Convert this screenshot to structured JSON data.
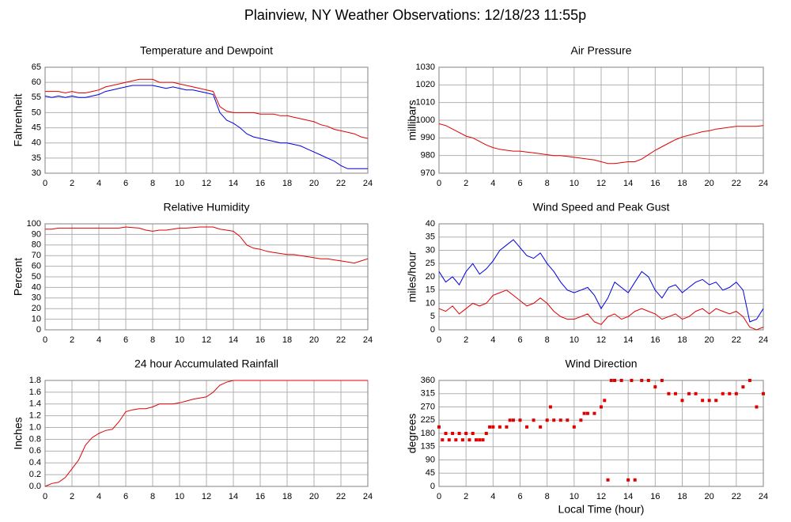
{
  "title": "Plainview, NY Weather Observations: 12/18/23 11:55p",
  "chart_data": [
    {
      "type": "line",
      "title": "Temperature and Dewpoint",
      "ylabel": "Fahrenheit",
      "x": [
        0,
        0.5,
        1,
        1.5,
        2,
        2.5,
        3,
        3.5,
        4,
        4.5,
        5,
        5.5,
        6,
        6.5,
        7,
        7.5,
        8,
        8.5,
        9,
        9.5,
        10,
        10.5,
        11,
        11.5,
        12,
        12.5,
        13,
        13.5,
        14,
        14.5,
        15,
        15.5,
        16,
        16.5,
        17,
        17.5,
        18,
        18.5,
        19,
        19.5,
        20,
        20.5,
        21,
        21.5,
        22,
        22.5,
        23,
        23.5,
        24
      ],
      "series": [
        {
          "color": "#e00000",
          "values": [
            57,
            57,
            57,
            56.5,
            57,
            56.5,
            56.5,
            57,
            57.5,
            58.5,
            59,
            59.5,
            60,
            60.5,
            61,
            61,
            61,
            60,
            60,
            60,
            59.5,
            59,
            58.5,
            58,
            57.5,
            57,
            52,
            50.5,
            50,
            50,
            50,
            50,
            49.5,
            49.5,
            49.5,
            49,
            49,
            48.5,
            48,
            47.5,
            47,
            46,
            45.5,
            44.5,
            44,
            43.5,
            43,
            42,
            41.5
          ]
        },
        {
          "color": "#0000e0",
          "values": [
            55.5,
            55,
            55.5,
            55,
            55.5,
            55,
            55,
            55.5,
            56,
            57,
            57.5,
            58,
            58.5,
            59,
            59,
            59,
            59,
            58.5,
            58,
            58.5,
            58,
            57.5,
            57.5,
            57,
            56.5,
            56,
            50,
            47.5,
            46.5,
            45,
            43,
            42,
            41.5,
            41,
            40.5,
            40,
            40,
            39.5,
            39,
            38,
            37,
            36,
            35,
            34,
            32.5,
            31.5,
            31.5,
            31.5,
            31.5
          ]
        }
      ],
      "xlim": [
        0,
        24
      ],
      "xticks": [
        0,
        2,
        4,
        6,
        8,
        10,
        12,
        14,
        16,
        18,
        20,
        22,
        24
      ],
      "ylim": [
        30,
        65
      ],
      "yticks": [
        30,
        35,
        40,
        45,
        50,
        55,
        60,
        65
      ],
      "grid": true
    },
    {
      "type": "line",
      "title": "Air Pressure",
      "ylabel": "millibars",
      "x": [
        0,
        0.5,
        1,
        1.5,
        2,
        2.5,
        3,
        3.5,
        4,
        4.5,
        5,
        5.5,
        6,
        6.5,
        7,
        7.5,
        8,
        8.5,
        9,
        9.5,
        10,
        10.5,
        11,
        11.5,
        12,
        12.5,
        13,
        13.5,
        14,
        14.5,
        15,
        15.5,
        16,
        16.5,
        17,
        17.5,
        18,
        18.5,
        19,
        19.5,
        20,
        20.5,
        21,
        21.5,
        22,
        22.5,
        23,
        23.5,
        24
      ],
      "series": [
        {
          "color": "#e00000",
          "values": [
            998,
            997,
            995,
            993,
            991,
            990,
            988,
            986,
            984.5,
            983.5,
            983,
            982.5,
            982.5,
            982,
            981.5,
            981,
            980.5,
            980,
            980,
            979.5,
            979,
            978.5,
            978,
            977.5,
            976.5,
            975.5,
            975.5,
            976,
            976.5,
            976.5,
            978,
            980.5,
            983,
            985,
            987,
            989,
            990.5,
            991.5,
            992.5,
            993.5,
            994,
            995,
            995.5,
            996,
            996.5,
            996.5,
            996.5,
            996.5,
            997
          ]
        }
      ],
      "xlim": [
        0,
        24
      ],
      "xticks": [
        0,
        2,
        4,
        6,
        8,
        10,
        12,
        14,
        16,
        18,
        20,
        22,
        24
      ],
      "ylim": [
        970,
        1030
      ],
      "yticks": [
        970,
        980,
        990,
        1000,
        1010,
        1020,
        1030
      ],
      "grid": true
    },
    {
      "type": "line",
      "title": "Relative Humidity",
      "ylabel": "Percent",
      "x": [
        0,
        0.5,
        1,
        1.5,
        2,
        2.5,
        3,
        3.5,
        4,
        4.5,
        5,
        5.5,
        6,
        6.5,
        7,
        7.5,
        8,
        8.5,
        9,
        9.5,
        10,
        10.5,
        11,
        11.5,
        12,
        12.5,
        13,
        13.5,
        14,
        14.5,
        15,
        15.5,
        16,
        16.5,
        17,
        17.5,
        18,
        18.5,
        19,
        19.5,
        20,
        20.5,
        21,
        21.5,
        22,
        22.5,
        23,
        23.5,
        24
      ],
      "series": [
        {
          "color": "#e00000",
          "values": [
            95,
            95,
            96,
            96,
            96,
            96,
            96,
            96,
            96,
            96,
            96,
            96,
            97,
            96.5,
            96,
            94,
            93,
            94,
            94,
            95,
            96,
            96,
            96.5,
            97,
            97,
            97,
            95,
            94,
            93,
            88,
            80,
            77,
            76,
            74,
            73,
            72,
            71,
            71,
            70,
            69,
            68,
            67,
            67,
            66,
            65,
            64,
            63,
            65,
            67
          ]
        }
      ],
      "xlim": [
        0,
        24
      ],
      "xticks": [
        0,
        2,
        4,
        6,
        8,
        10,
        12,
        14,
        16,
        18,
        20,
        22,
        24
      ],
      "ylim": [
        0,
        100
      ],
      "yticks": [
        0,
        10,
        20,
        30,
        40,
        50,
        60,
        70,
        80,
        90,
        100
      ],
      "grid": true
    },
    {
      "type": "line",
      "title": "Wind Speed and Peak Gust",
      "ylabel": "miles/hour",
      "x": [
        0,
        0.5,
        1,
        1.5,
        2,
        2.5,
        3,
        3.5,
        4,
        4.5,
        5,
        5.5,
        6,
        6.5,
        7,
        7.5,
        8,
        8.5,
        9,
        9.5,
        10,
        10.5,
        11,
        11.5,
        12,
        12.5,
        13,
        13.5,
        14,
        14.5,
        15,
        15.5,
        16,
        16.5,
        17,
        17.5,
        18,
        18.5,
        19,
        19.5,
        20,
        20.5,
        21,
        21.5,
        22,
        22.5,
        23,
        23.5,
        24
      ],
      "series": [
        {
          "color": "#0000e0",
          "values": [
            22,
            18,
            20,
            17,
            22,
            25,
            21,
            23,
            26,
            30,
            32,
            34,
            31,
            28,
            27,
            29,
            25,
            22,
            18,
            15,
            14,
            15,
            16,
            13,
            8,
            12,
            18,
            16,
            14,
            18,
            22,
            20,
            15,
            12,
            16,
            17,
            14,
            16,
            18,
            19,
            17,
            18,
            15,
            16,
            18,
            15,
            3,
            4,
            8
          ]
        },
        {
          "color": "#e00000",
          "values": [
            8,
            7,
            9,
            6,
            8,
            10,
            9,
            10,
            13,
            14,
            15,
            13,
            11,
            9,
            10,
            12,
            10,
            7,
            5,
            4,
            4,
            5,
            6,
            3,
            2,
            5,
            6,
            4,
            5,
            7,
            8,
            7,
            6,
            4,
            5,
            6,
            4,
            5,
            7,
            8,
            6,
            8,
            7,
            6,
            7,
            5,
            1,
            0,
            1
          ]
        }
      ],
      "xlim": [
        0,
        24
      ],
      "xticks": [
        0,
        2,
        4,
        6,
        8,
        10,
        12,
        14,
        16,
        18,
        20,
        22,
        24
      ],
      "ylim": [
        0,
        40
      ],
      "yticks": [
        0,
        5,
        10,
        15,
        20,
        25,
        30,
        35,
        40
      ],
      "grid": true
    },
    {
      "type": "line",
      "title": "24 hour Accumulated Rainfall",
      "ylabel": "Inches",
      "x": [
        0,
        0.5,
        1,
        1.5,
        2,
        2.5,
        3,
        3.5,
        4,
        4.5,
        5,
        5.5,
        6,
        6.5,
        7,
        7.5,
        8,
        8.5,
        9,
        9.5,
        10,
        10.5,
        11,
        11.5,
        12,
        12.5,
        13,
        13.5,
        14,
        14.5,
        15,
        15.5,
        16,
        16.5,
        17,
        17.5,
        18,
        18.5,
        19,
        19.5,
        20,
        20.5,
        21,
        21.5,
        22,
        22.5,
        23,
        23.5,
        24
      ],
      "series": [
        {
          "color": "#e00000",
          "values": [
            0,
            0.05,
            0.07,
            0.15,
            0.3,
            0.45,
            0.7,
            0.83,
            0.9,
            0.95,
            0.97,
            1.1,
            1.27,
            1.3,
            1.32,
            1.32,
            1.35,
            1.4,
            1.4,
            1.4,
            1.42,
            1.45,
            1.48,
            1.5,
            1.52,
            1.6,
            1.72,
            1.77,
            1.8,
            1.8,
            1.8,
            1.8,
            1.8,
            1.8,
            1.8,
            1.8,
            1.8,
            1.8,
            1.8,
            1.8,
            1.8,
            1.8,
            1.8,
            1.8,
            1.8,
            1.8,
            1.8,
            1.8,
            1.8
          ]
        }
      ],
      "xlim": [
        0,
        24
      ],
      "xticks": [
        0,
        2,
        4,
        6,
        8,
        10,
        12,
        14,
        16,
        18,
        20,
        22,
        24
      ],
      "ylim": [
        0,
        1.8
      ],
      "yticks": [
        {
          "value": 0,
          "label": "0.0"
        },
        0.2,
        0.4,
        0.6,
        0.8,
        {
          "value": 1,
          "label": "1.0"
        },
        1.2,
        1.4,
        1.6,
        1.8
      ],
      "grid": true
    },
    {
      "type": "scatter",
      "title": "Wind Direction",
      "ylabel": "degrees",
      "xlabel": "Local Time (hour)",
      "color": "#e00000",
      "x": [
        0,
        0.25,
        0.5,
        0.75,
        1,
        1.25,
        1.5,
        1.75,
        2,
        2.25,
        2.5,
        2.75,
        3,
        3.25,
        3.5,
        3.75,
        4,
        4.5,
        5,
        5.25,
        5.5,
        6,
        6.5,
        7,
        7.5,
        8,
        8.25,
        8.5,
        9,
        9.5,
        10,
        10.5,
        10.75,
        11,
        11.5,
        12,
        12.25,
        12.5,
        12.75,
        13,
        13.5,
        14,
        14.25,
        14.5,
        15,
        15.5,
        16,
        16.5,
        17,
        17.5,
        18,
        18.5,
        19,
        19.5,
        20,
        20.5,
        21,
        21.5,
        22,
        22.5,
        23,
        23.5,
        24
      ],
      "values": [
        202,
        158,
        180,
        158,
        180,
        158,
        180,
        158,
        180,
        158,
        180,
        158,
        158,
        158,
        180,
        202,
        202,
        202,
        202,
        225,
        225,
        225,
        202,
        225,
        202,
        225,
        270,
        225,
        225,
        225,
        202,
        225,
        248,
        248,
        248,
        270,
        292,
        22,
        360,
        360,
        360,
        22,
        360,
        22,
        360,
        360,
        338,
        360,
        315,
        315,
        292,
        315,
        315,
        292,
        292,
        292,
        315,
        315,
        315,
        338,
        360,
        270,
        315
      ],
      "xlim": [
        0,
        24
      ],
      "xticks": [
        0,
        2,
        4,
        6,
        8,
        10,
        12,
        14,
        16,
        18,
        20,
        22,
        24
      ],
      "ylim": [
        0,
        360
      ],
      "yticks": [
        0,
        45,
        90,
        135,
        180,
        225,
        270,
        315,
        360
      ],
      "grid": true
    }
  ]
}
